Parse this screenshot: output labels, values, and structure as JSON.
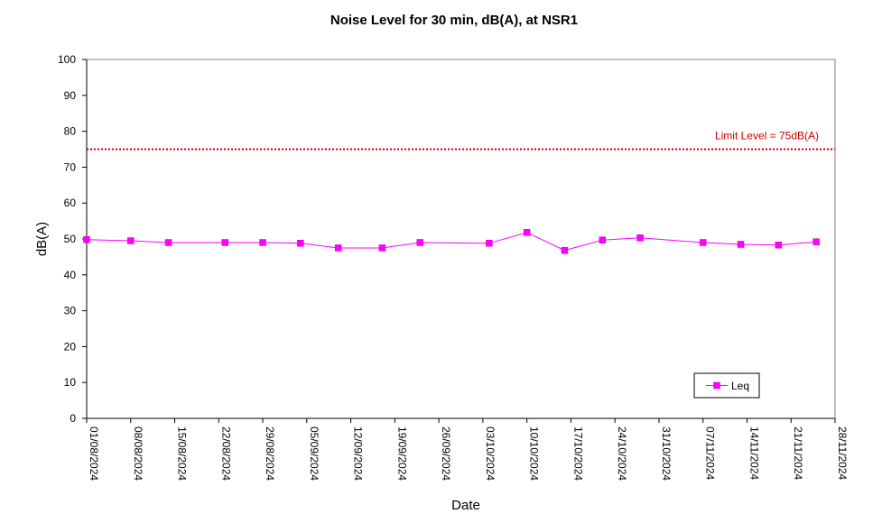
{
  "chart_data": {
    "type": "line",
    "title": "Noise Level for 30 min, dB(A), at NSR1",
    "xlabel": "Date",
    "ylabel": "dB(A)",
    "ylim": [
      0,
      100
    ],
    "yticks": [
      "0",
      "10",
      "20",
      "30",
      "40",
      "50",
      "60",
      "70",
      "80",
      "90",
      "100"
    ],
    "xlim": [
      "2024-08-01",
      "2024-11-28"
    ],
    "xticks": [
      "01/08/2024",
      "08/08/2024",
      "15/08/2024",
      "22/08/2024",
      "29/08/2024",
      "05/09/2024",
      "12/09/2024",
      "19/09/2024",
      "26/09/2024",
      "03/10/2024",
      "10/10/2024",
      "17/10/2024",
      "24/10/2024",
      "31/10/2024",
      "07/11/2024",
      "14/11/2024",
      "21/11/2024",
      "28/11/2024"
    ],
    "grid": false,
    "legend": "bottom-right",
    "series": [
      {
        "name": "Leq",
        "color": "#FF00FF",
        "marker": "square",
        "x": [
          "2024-08-01",
          "2024-08-08",
          "2024-08-14",
          "2024-08-23",
          "2024-08-29",
          "2024-09-04",
          "2024-09-10",
          "2024-09-17",
          "2024-09-23",
          "2024-10-04",
          "2024-10-10",
          "2024-10-16",
          "2024-10-22",
          "2024-10-28",
          "2024-11-07",
          "2024-11-13",
          "2024-11-19",
          "2024-11-25"
        ],
        "values": [
          49.8,
          49.5,
          49.0,
          49.0,
          49.0,
          48.8,
          47.5,
          47.5,
          49.0,
          48.8,
          51.8,
          46.8,
          49.7,
          50.3,
          49.0,
          48.5,
          48.3,
          49.2
        ]
      }
    ],
    "annotations": [
      {
        "text": "Limit Level  = 75dB(A)",
        "y": 75,
        "color": "#CC0000",
        "style": "dotted"
      }
    ]
  }
}
